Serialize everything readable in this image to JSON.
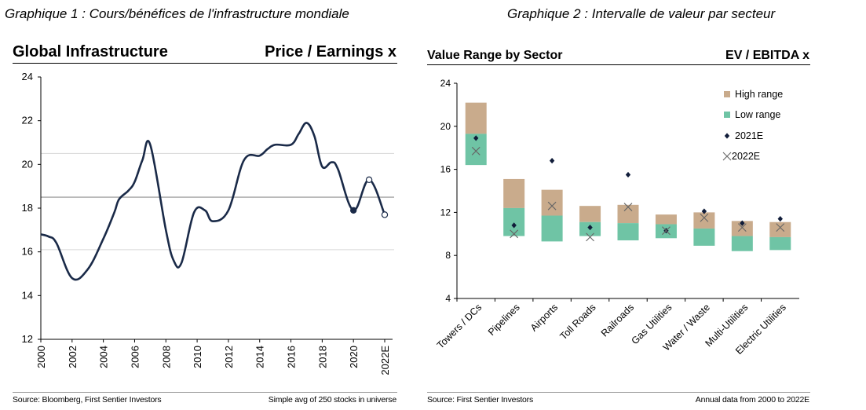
{
  "graph_titles": {
    "left": "Graphique 1 : Cours/bénéfices de l'infrastructure mondiale",
    "right": "Graphique 2 : Intervalle de valeur par secteur"
  },
  "left_panel": {
    "header": "Global Infrastructure",
    "header_right": "Price / Earnings x",
    "source": "Source: Bloomberg, First Sentier Investors",
    "note": "Simple avg of 250 stocks in universe"
  },
  "right_panel": {
    "header": "Value Range by Sector",
    "header_right": "EV / EBITDA x",
    "source": "Source: First Sentier Investors",
    "note": "Annual data from 2000 to 2022E"
  },
  "colors": {
    "line": "#1a2a48",
    "high": "#c9ab8c",
    "low": "#6fc4a5",
    "marker": "#111d3a",
    "grid": "#c8c8c8"
  },
  "chart_data": [
    {
      "type": "line",
      "title": "Global Infrastructure",
      "ylabel": "Price / Earnings x",
      "ylim": [
        12,
        24
      ],
      "yticks": [
        12,
        14,
        16,
        18,
        20,
        22,
        24
      ],
      "xticks": [
        "2000",
        "2002",
        "2004",
        "2006",
        "2008",
        "2010",
        "2012",
        "2014",
        "2016",
        "2018",
        "2020",
        "2022E"
      ],
      "reference_lines": [
        20.5,
        18.5,
        16.1
      ],
      "series": [
        {
          "x": [
            2000,
            2000.5,
            2001,
            2002,
            2003,
            2004,
            2004.7,
            2005,
            2005.6,
            2006,
            2006.5,
            2007,
            2008,
            2008.5,
            2009,
            2009.8,
            2010.5,
            2011,
            2012,
            2013,
            2014,
            2014.5,
            2015,
            2016,
            2016.5,
            2017,
            2017.5,
            2018,
            2018.6,
            2019,
            2020,
            2021,
            2022
          ],
          "y": [
            16.8,
            16.7,
            16.4,
            14.8,
            15.2,
            16.6,
            17.8,
            18.4,
            18.8,
            19.2,
            20.2,
            20.9,
            17.0,
            15.6,
            15.5,
            17.8,
            17.9,
            17.4,
            17.9,
            20.2,
            20.4,
            20.7,
            20.9,
            20.9,
            21.4,
            21.9,
            21.3,
            19.9,
            20.1,
            19.8,
            17.9,
            19.3,
            17.7
          ]
        }
      ],
      "highlight_points": [
        {
          "x": 2020,
          "y": 17.9,
          "style": "filled"
        },
        {
          "x": 2021,
          "y": 19.3,
          "style": "open"
        },
        {
          "x": 2022,
          "y": 17.7,
          "style": "open"
        }
      ]
    },
    {
      "type": "bar",
      "title": "Value Range by Sector",
      "ylabel": "EV / EBITDA x",
      "ylim": [
        4,
        24
      ],
      "yticks": [
        4,
        8,
        12,
        16,
        20,
        24
      ],
      "categories": [
        "Towers / DCs",
        "Pipelines",
        "Airports",
        "Toll Roads",
        "Railroads",
        "Gas Utilities",
        "Water / Waste",
        "Multi-Utilities",
        "Electric Utilities"
      ],
      "legend_position": "top-right",
      "series": [
        {
          "name": "Low range",
          "bottom": [
            16.4,
            9.8,
            9.3,
            9.8,
            9.4,
            9.6,
            8.9,
            8.4,
            8.5
          ],
          "top": [
            19.3,
            12.4,
            11.7,
            11.1,
            11.0,
            10.9,
            10.5,
            9.8,
            9.7
          ]
        },
        {
          "name": "High range",
          "bottom": [
            19.3,
            12.4,
            11.7,
            11.1,
            11.0,
            10.9,
            10.5,
            9.8,
            9.7
          ],
          "top": [
            22.2,
            15.1,
            14.1,
            12.6,
            12.7,
            11.8,
            12.0,
            11.2,
            11.1
          ]
        },
        {
          "name": "2021E",
          "values": [
            18.9,
            10.8,
            16.8,
            10.6,
            15.5,
            10.3,
            12.1,
            11.0,
            11.4
          ]
        },
        {
          "name": "2022E",
          "values": [
            17.7,
            10.0,
            12.6,
            9.7,
            12.5,
            10.3,
            11.5,
            10.6,
            10.6
          ]
        }
      ]
    }
  ]
}
